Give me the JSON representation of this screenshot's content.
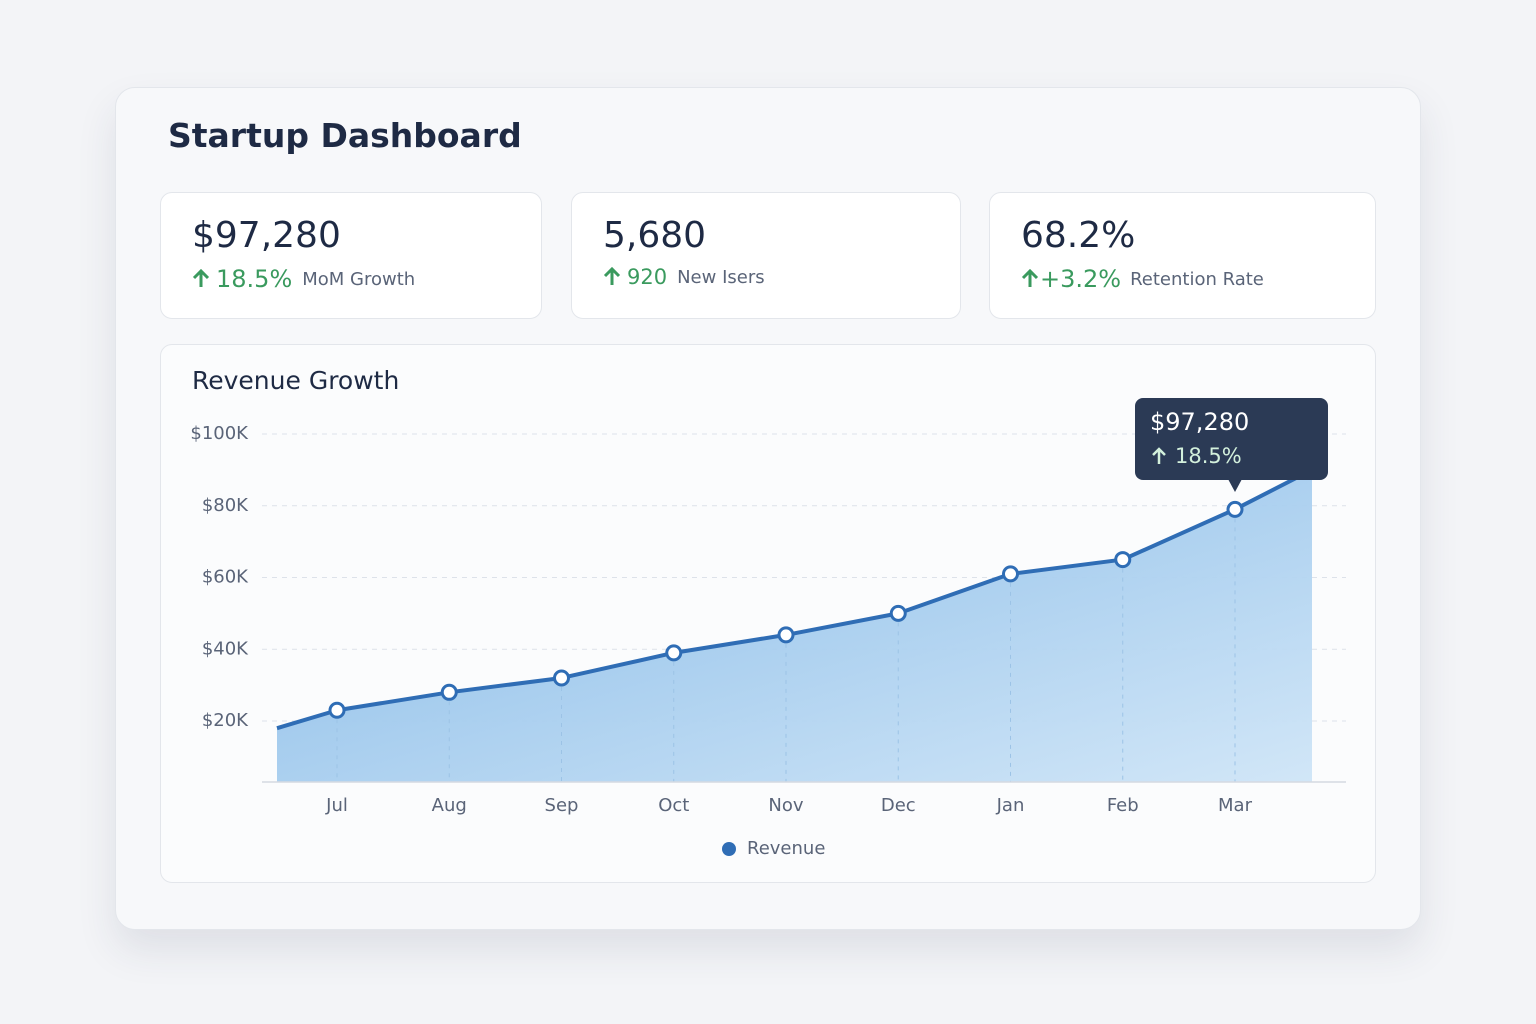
{
  "header": {
    "title": "Startup Dashboard"
  },
  "kpis": [
    {
      "value": "$97,280",
      "change": "18.5%",
      "label": "MoM Growth"
    },
    {
      "value": "5,680",
      "change": "920",
      "label": "New Isers"
    },
    {
      "value": "68.2%",
      "change": "+3.2%",
      "label": "Retention Rate"
    }
  ],
  "chart_data": {
    "type": "area",
    "title": "Revenue Growth",
    "categories": [
      null,
      "Jul",
      "Aug",
      "Sep",
      "Oct",
      "Nov",
      "Dec",
      "Jan",
      "Feb",
      "Mar",
      null
    ],
    "series": [
      {
        "name": "Revenue",
        "color": "#2f6db5",
        "values": [
          18,
          23,
          28,
          32,
          39,
          44,
          50,
          61,
          65,
          79,
          90
        ]
      }
    ],
    "ylim": [
      3,
      100
    ],
    "yticks": [
      {
        "value": 20,
        "label": "$20K"
      },
      {
        "value": 40,
        "label": "$40K"
      },
      {
        "value": 60,
        "label": "$60K"
      },
      {
        "value": 80,
        "label": "$80K"
      },
      {
        "value": 100,
        "label": "$100K"
      }
    ],
    "grid": true,
    "tooltip": {
      "value": "$97,280",
      "change": "18.5%"
    }
  }
}
